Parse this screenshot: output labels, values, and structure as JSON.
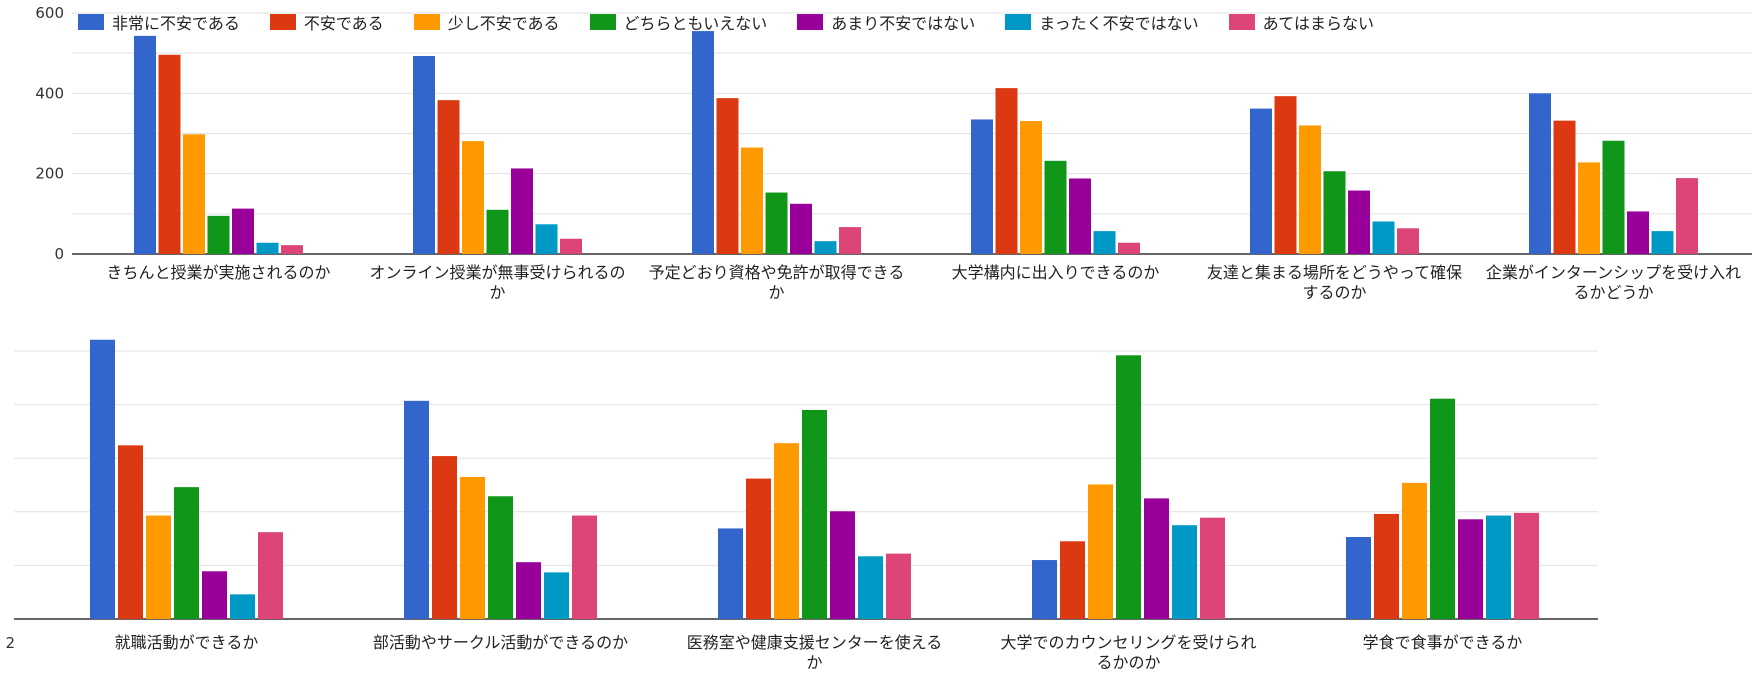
{
  "legend": [
    {
      "label": "非常に不安である",
      "color": "#3366cc"
    },
    {
      "label": "不安である",
      "color": "#dc3912"
    },
    {
      "label": "少し不安である",
      "color": "#ff9900"
    },
    {
      "label": "どちらともいえない",
      "color": "#109618"
    },
    {
      "label": "あまり不安ではない",
      "color": "#990099"
    },
    {
      "label": "まったく不安ではない",
      "color": "#0099c6"
    },
    {
      "label": "あてはまらない",
      "color": "#dd4477"
    }
  ],
  "chart_data": [
    {
      "type": "bar",
      "categories": [
        [
          "きちんと授業が実施されるのか"
        ],
        [
          "オンライン授業が無事受けられるの",
          "か"
        ],
        [
          "予定どおり資格や免許が取得できる",
          "か"
        ],
        [
          "大学構内に出入りできるのか"
        ],
        [
          "友達と集まる場所をどうやって確保",
          "するのか"
        ],
        [
          "企業がインターンシップを受け入れ",
          "るかどうか"
        ]
      ],
      "series": [
        {
          "name": "非常に不安である",
          "values": [
            543,
            493,
            555,
            335,
            362,
            400
          ]
        },
        {
          "name": "不安である",
          "values": [
            496,
            383,
            388,
            413,
            393,
            332
          ]
        },
        {
          "name": "少し不安である",
          "values": [
            298,
            281,
            265,
            331,
            320,
            228
          ]
        },
        {
          "name": "どちらともいえない",
          "values": [
            95,
            110,
            153,
            232,
            206,
            282
          ]
        },
        {
          "name": "あまり不安ではない",
          "values": [
            113,
            213,
            125,
            188,
            158,
            106
          ]
        },
        {
          "name": "まったく不安ではない",
          "values": [
            28,
            74,
            32,
            57,
            81,
            57
          ]
        },
        {
          "name": "あてはまらない",
          "values": [
            22,
            38,
            67,
            28,
            64,
            189
          ]
        }
      ],
      "yticks": [
        "0",
        "200",
        "400",
        "600"
      ],
      "ylim": [
        0,
        600
      ],
      "grid": true,
      "legend_position": "top-left"
    },
    {
      "type": "bar",
      "categories": [
        [
          "就職活動ができるか"
        ],
        [
          "部活動やサークル活動ができるのか"
        ],
        [
          "医務室や健康支援センターを使える",
          "か"
        ],
        [
          "大学でのカウンセリングを受けられ",
          "るかのか"
        ],
        [
          "学食で食事ができるか"
        ]
      ],
      "series": [
        {
          "name": "非常に不安である",
          "values": [
            521,
            407,
            169,
            110,
            153
          ]
        },
        {
          "name": "不安である",
          "values": [
            324,
            304,
            262,
            145,
            196
          ]
        },
        {
          "name": "少し不安である",
          "values": [
            193,
            265,
            328,
            251,
            254
          ]
        },
        {
          "name": "どちらともいえない",
          "values": [
            246,
            229,
            390,
            492,
            411
          ]
        },
        {
          "name": "あまり不安ではない",
          "values": [
            89,
            106,
            201,
            225,
            186
          ]
        },
        {
          "name": "まったく不安ではない",
          "values": [
            46,
            87,
            117,
            175,
            193
          ]
        },
        {
          "name": "あてはまらない",
          "values": [
            162,
            193,
            122,
            189,
            198
          ]
        }
      ],
      "yticks": [
        "2"
      ],
      "ylim": [
        0,
        500
      ],
      "grid": true
    }
  ]
}
